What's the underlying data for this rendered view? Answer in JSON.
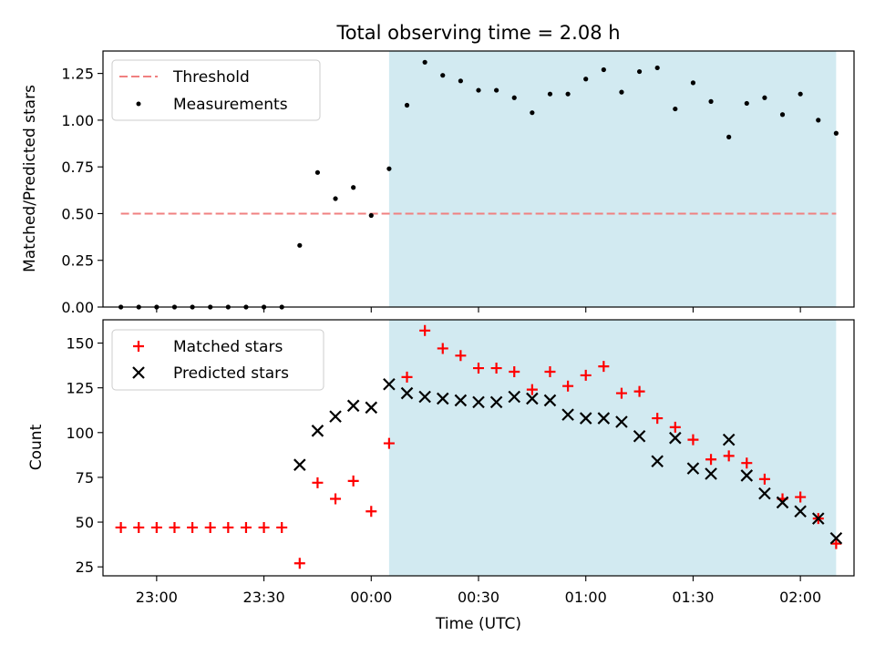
{
  "title": "Total observing time = 2.08 h",
  "xlabel": "Time (UTC)",
  "x_ticks": [
    "23:00",
    "23:30",
    "00:00",
    "00:30",
    "01:00",
    "01:30",
    "02:00"
  ],
  "colors": {
    "shade": "#add8e6",
    "threshold": "#f08080",
    "measurements": "#000000",
    "matched": "#ff0000",
    "predicted": "#000000"
  },
  "chart_data": [
    {
      "type": "scatter",
      "ylabel": "Matched/Predicted stars",
      "ylim": [
        0.0,
        1.37
      ],
      "y_ticks": [
        "0.00",
        "0.25",
        "0.50",
        "0.75",
        "1.00",
        "1.25"
      ],
      "x": [
        "22:50",
        "22:55",
        "23:00",
        "23:05",
        "23:10",
        "23:15",
        "23:20",
        "23:25",
        "23:30",
        "23:35",
        "23:40",
        "23:45",
        "23:50",
        "23:55",
        "00:00",
        "00:05",
        "00:10",
        "00:15",
        "00:20",
        "00:25",
        "00:30",
        "00:35",
        "00:40",
        "00:45",
        "00:50",
        "00:55",
        "01:00",
        "01:05",
        "01:10",
        "01:15",
        "01:20",
        "01:25",
        "01:30",
        "01:35",
        "01:40",
        "01:45",
        "01:50",
        "01:55",
        "02:00",
        "02:05",
        "02:10"
      ],
      "xlim": [
        "22:45",
        "02:15"
      ],
      "shaded_region": [
        "00:05",
        "02:10"
      ],
      "legend": "upper left",
      "series": [
        {
          "name": "Threshold",
          "style": "dashed-line",
          "x": [
            "22:50",
            "02:10"
          ],
          "values": [
            0.5,
            0.5
          ]
        },
        {
          "name": "Measurements",
          "style": "dot",
          "values": [
            0,
            0,
            0,
            0,
            0,
            0,
            0,
            0,
            0,
            0,
            0.33,
            0.72,
            0.58,
            0.64,
            0.49,
            0.74,
            1.08,
            1.31,
            1.24,
            1.21,
            1.16,
            1.16,
            1.12,
            1.04,
            1.14,
            1.14,
            1.22,
            1.27,
            1.15,
            1.26,
            1.28,
            1.06,
            1.2,
            1.1,
            0.91,
            1.09,
            1.12,
            1.03,
            1.14,
            1.0,
            0.93
          ]
        }
      ]
    },
    {
      "type": "scatter",
      "ylabel": "Count",
      "ylim": [
        20,
        163
      ],
      "y_ticks": [
        "25",
        "50",
        "75",
        "100",
        "125",
        "150"
      ],
      "legend": "upper left",
      "series": [
        {
          "name": "Matched stars",
          "style": "plus",
          "values": [
            47,
            47,
            47,
            47,
            47,
            47,
            47,
            47,
            47,
            47,
            27,
            72,
            63,
            73,
            56,
            94,
            131,
            157,
            147,
            143,
            136,
            136,
            134,
            124,
            134,
            126,
            132,
            137,
            122,
            123,
            108,
            103,
            96,
            85,
            87,
            83,
            74,
            63,
            64,
            52,
            38
          ]
        },
        {
          "name": "Predicted stars",
          "style": "x",
          "values": [
            null,
            null,
            null,
            null,
            null,
            null,
            null,
            null,
            null,
            null,
            82,
            101,
            109,
            115,
            114,
            127,
            122,
            120,
            119,
            118,
            117,
            117,
            120,
            119,
            118,
            110,
            108,
            108,
            106,
            98,
            84,
            97,
            80,
            77,
            96,
            76,
            66,
            61,
            56,
            52,
            41
          ]
        }
      ]
    }
  ]
}
